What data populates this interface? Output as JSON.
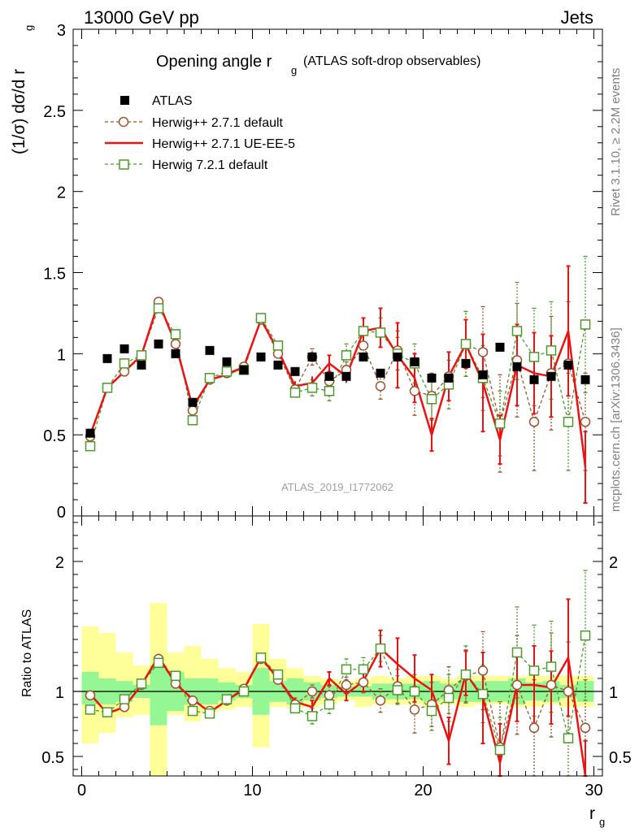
{
  "header": {
    "left": "13000 GeV pp",
    "right": "Jets"
  },
  "side_labels": {
    "top": "Rivet 3.1.10, ≥ 2.2M events",
    "bottom": "mcplots.cern.ch [arXiv:1306.3436]"
  },
  "watermark": "ATLAS_2019_I1772062",
  "colors": {
    "atlas": "#000000",
    "herwig_def": "#a0522d",
    "herwig_ue": "#ee1111",
    "herwig72": "#4c9a2a",
    "band_green": "#94f794",
    "band_yellow": "#ffff99"
  },
  "chart_data": [
    {
      "type": "scatter",
      "title": "Opening angle r",
      "title_sub": "g",
      "title_suffix": "(ATLAS soft-drop observables)",
      "ylabel_main": "(1/σ) dσ/d r",
      "ylabel_sub": "g",
      "ylim": [
        0,
        3
      ],
      "xlim": [
        -0.5,
        30.5
      ],
      "yticks": [
        "0",
        "0.5",
        "1",
        "1.5",
        "2",
        "2.5",
        "3"
      ],
      "grid": false,
      "legend_position": "top-left",
      "x": [
        0.5,
        1.5,
        2.5,
        3.5,
        4.5,
        5.5,
        6.5,
        7.5,
        8.5,
        9.5,
        10.5,
        11.5,
        12.5,
        13.5,
        14.5,
        15.5,
        16.5,
        17.5,
        18.5,
        19.5,
        20.5,
        21.5,
        22.5,
        23.5,
        24.5,
        25.5,
        26.5,
        27.5,
        28.5,
        29.5
      ],
      "series": [
        {
          "name": "ATLAS",
          "style": "square-filled",
          "values": [
            0.51,
            0.97,
            1.03,
            0.93,
            1.06,
            1.0,
            0.7,
            1.02,
            0.95,
            0.9,
            0.98,
            0.93,
            0.89,
            0.98,
            0.86,
            0.86,
            0.98,
            0.88,
            0.98,
            0.95,
            0.85,
            0.85,
            0.94,
            0.87,
            1.04,
            0.92,
            0.84,
            0.86,
            0.93,
            0.84
          ]
        },
        {
          "name": "Herwig++ 2.7.1 default",
          "style": "circle-open-dashed",
          "values": [
            0.49,
            0.79,
            0.89,
            0.98,
            1.32,
            1.06,
            0.65,
            0.84,
            0.88,
            0.92,
            1.21,
            1.0,
            0.78,
            0.98,
            0.83,
            0.9,
            1.05,
            0.8,
            1.02,
            0.77,
            0.74,
            0.86,
            1.06,
            1.01,
            0.57,
            0.96,
            0.58,
            0.88,
            0.94,
            0.58
          ],
          "errors": [
            0.02,
            0.02,
            0.02,
            0.02,
            0.02,
            0.02,
            0.02,
            0.02,
            0.02,
            0.02,
            0.02,
            0.02,
            0.04,
            0.05,
            0.06,
            0.05,
            0.07,
            0.08,
            0.12,
            0.15,
            0.14,
            0.15,
            0.2,
            0.28,
            0.3,
            0.35,
            0.3,
            0.35,
            0.38,
            0.3
          ]
        },
        {
          "name": "Herwig++ 2.7.1 UE-EE-5",
          "style": "line-solid",
          "values": [
            0.5,
            0.79,
            0.89,
            0.99,
            1.32,
            1.06,
            0.67,
            0.84,
            0.87,
            0.92,
            1.21,
            1.02,
            0.8,
            0.82,
            0.94,
            0.86,
            1.14,
            1.16,
            0.99,
            0.85,
            0.5,
            0.86,
            1.06,
            0.82,
            0.47,
            0.93,
            0.88,
            0.86,
            1.14,
            0.3
          ],
          "errors": [
            0.02,
            0.02,
            0.02,
            0.02,
            0.02,
            0.02,
            0.02,
            0.02,
            0.02,
            0.02,
            0.02,
            0.02,
            0.03,
            0.04,
            0.05,
            0.04,
            0.08,
            0.12,
            0.2,
            0.15,
            0.1,
            0.15,
            0.15,
            0.3,
            0.15,
            0.25,
            0.25,
            0.25,
            0.4,
            0.22
          ]
        },
        {
          "name": "Herwig 7.2.1 default",
          "style": "square-open-dashed",
          "values": [
            0.43,
            0.79,
            0.94,
            0.99,
            1.28,
            1.12,
            0.59,
            0.85,
            0.89,
            0.9,
            1.22,
            1.05,
            0.76,
            0.79,
            0.77,
            0.99,
            1.14,
            1.13,
            1.0,
            0.94,
            0.72,
            0.81,
            1.06,
            0.85,
            0.57,
            1.14,
            0.98,
            1.02,
            0.58,
            1.18
          ],
          "errors": [
            0.02,
            0.02,
            0.02,
            0.02,
            0.02,
            0.02,
            0.02,
            0.02,
            0.02,
            0.02,
            0.02,
            0.02,
            0.03,
            0.05,
            0.06,
            0.07,
            0.08,
            0.09,
            0.1,
            0.12,
            0.13,
            0.15,
            0.2,
            0.2,
            0.2,
            0.3,
            0.3,
            0.3,
            0.3,
            0.42
          ]
        }
      ]
    },
    {
      "type": "scatter",
      "ylabel": "Ratio to ATLAS",
      "xlabel": "r",
      "xlabel_sub": "g",
      "xlim": [
        -0.5,
        30.5
      ],
      "ylim": [
        0.35,
        2.35
      ],
      "xticks": [
        "0",
        "10",
        "20",
        "30"
      ],
      "yticks": [
        "0.5",
        "1",
        "2"
      ],
      "reference_line": 1,
      "bands": {
        "stat_green_low": [
          0.9,
          0.9,
          0.92,
          0.95,
          0.74,
          0.85,
          0.9,
          0.9,
          0.93,
          0.95,
          0.82,
          0.92,
          0.9,
          0.93,
          0.95,
          0.96,
          0.96,
          0.94,
          0.94,
          0.94,
          0.92,
          0.94,
          0.92,
          0.92,
          0.92,
          0.9,
          0.93,
          0.92,
          0.95,
          0.92
        ],
        "stat_green_high": [
          1.15,
          1.1,
          1.08,
          1.05,
          1.2,
          1.15,
          1.1,
          1.1,
          1.07,
          1.05,
          1.18,
          1.08,
          1.1,
          1.07,
          1.05,
          1.04,
          1.04,
          1.06,
          1.06,
          1.06,
          1.08,
          1.06,
          1.08,
          1.08,
          1.08,
          1.1,
          1.07,
          1.08,
          1.05,
          1.08
        ],
        "total_yellow_low": [
          0.6,
          0.68,
          0.8,
          0.82,
          0.3,
          0.82,
          0.77,
          0.84,
          0.86,
          0.88,
          0.57,
          0.88,
          0.87,
          0.88,
          0.9,
          0.93,
          0.88,
          0.9,
          0.9,
          0.9,
          0.88,
          0.9,
          0.88,
          0.9,
          0.9,
          0.88,
          0.88,
          0.9,
          0.88,
          0.88
        ],
        "total_yellow_high": [
          1.5,
          1.45,
          1.3,
          1.2,
          1.68,
          1.3,
          1.35,
          1.25,
          1.18,
          1.15,
          1.52,
          1.25,
          1.18,
          1.12,
          1.1,
          1.08,
          1.1,
          1.12,
          1.1,
          1.12,
          1.12,
          1.1,
          1.12,
          1.12,
          1.12,
          1.12,
          1.12,
          1.12,
          1.12,
          1.12
        ]
      },
      "series": [
        {
          "name": "Herwig++ 2.7.1 default",
          "values": [
            0.97,
            0.84,
            0.88,
            1.05,
            1.25,
            1.06,
            0.93,
            0.85,
            0.93,
            1.02,
            1.25,
            1.09,
            0.9,
            1.0,
            0.97,
            1.05,
            1.07,
            0.93,
            1.04,
            0.86,
            0.9,
            1.01,
            1.12,
            1.16,
            0.57,
            1.05,
            0.72,
            1.05,
            1.0,
            0.72
          ],
          "errors": [
            0.02,
            0.02,
            0.02,
            0.02,
            0.02,
            0.02,
            0.02,
            0.02,
            0.02,
            0.02,
            0.02,
            0.02,
            0.05,
            0.05,
            0.07,
            0.06,
            0.08,
            0.09,
            0.13,
            0.18,
            0.17,
            0.18,
            0.2,
            0.3,
            0.35,
            0.38,
            0.37,
            0.4,
            0.38,
            0.37
          ]
        },
        {
          "name": "Herwig++ 2.7.1 UE-EE-5",
          "values": [
            0.98,
            0.83,
            0.88,
            1.05,
            1.27,
            1.06,
            0.94,
            0.84,
            0.93,
            1.02,
            1.26,
            1.1,
            0.92,
            0.88,
            1.1,
            0.98,
            1.08,
            1.33,
            1.21,
            1.1,
            1.01,
            0.62,
            1.14,
            0.95,
            0.45,
            1.05,
            1.05,
            1.03,
            1.26,
            0.35
          ],
          "errors": [
            0.02,
            0.02,
            0.02,
            0.02,
            0.02,
            0.02,
            0.02,
            0.02,
            0.02,
            0.02,
            0.02,
            0.02,
            0.03,
            0.05,
            0.05,
            0.05,
            0.08,
            0.14,
            0.2,
            0.18,
            0.12,
            0.18,
            0.17,
            0.35,
            0.3,
            0.28,
            0.3,
            0.28,
            0.45,
            0.27
          ]
        },
        {
          "name": "Herwig 7.2.1 default",
          "values": [
            0.86,
            0.84,
            0.94,
            1.06,
            1.22,
            1.12,
            0.85,
            0.83,
            0.94,
            1.0,
            1.26,
            1.13,
            0.87,
            0.81,
            0.9,
            1.17,
            1.17,
            1.33,
            1.01,
            1.0,
            0.85,
            0.95,
            1.13,
            0.98,
            0.55,
            1.3,
            1.16,
            1.19,
            0.64,
            1.43
          ],
          "errors": [
            0.02,
            0.02,
            0.02,
            0.02,
            0.02,
            0.02,
            0.02,
            0.02,
            0.02,
            0.02,
            0.02,
            0.02,
            0.03,
            0.06,
            0.07,
            0.08,
            0.09,
            0.1,
            0.11,
            0.13,
            0.15,
            0.18,
            0.22,
            0.22,
            0.25,
            0.35,
            0.35,
            0.35,
            0.35,
            0.5
          ]
        }
      ]
    }
  ]
}
